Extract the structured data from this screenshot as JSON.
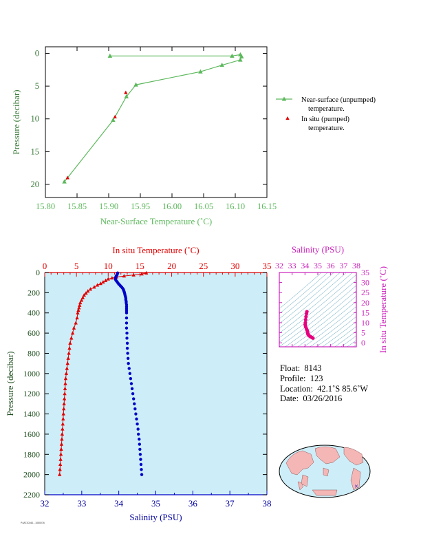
{
  "chart_data": [
    {
      "id": "near_surface",
      "type": "line",
      "xlabel": "Near-Surface Temperature (˚C)",
      "ylabel": "Pressure (decibar)",
      "xlim": [
        15.8,
        16.15
      ],
      "ylim": [
        22,
        -1
      ],
      "x_ticks": [
        15.8,
        15.85,
        15.9,
        15.95,
        16.0,
        16.05,
        16.1,
        16.15
      ],
      "x_tick_labels": [
        "15.80",
        "15.85",
        "15.90",
        "15.95",
        "16.00",
        "16.05",
        "16.10",
        "16.15"
      ],
      "y_ticks": [
        0,
        5,
        10,
        15,
        20
      ],
      "y_tick_labels": [
        "0",
        "5",
        "10",
        "15",
        "20"
      ],
      "legend_position": "right",
      "series": [
        {
          "name": "Near-surface (unpumped) temperature.",
          "color": "#5cb85c",
          "marker": "triangle",
          "points": [
            [
              15.902,
              0.4
            ],
            [
              16.095,
              0.4
            ],
            [
              16.108,
              0.2
            ],
            [
              16.11,
              0.5
            ],
            [
              16.108,
              1.0
            ],
            [
              16.079,
              1.8
            ],
            [
              16.045,
              2.8
            ],
            [
              15.943,
              4.8
            ],
            [
              15.928,
              6.6
            ],
            [
              15.907,
              10.2
            ],
            [
              15.83,
              19.6
            ]
          ]
        },
        {
          "name": "In situ (pumped) temperature.",
          "color": "#e00000",
          "marker": "triangle",
          "points": [
            [
              15.927,
              6.0
            ],
            [
              15.91,
              9.7
            ],
            [
              15.835,
              19.0
            ]
          ]
        }
      ]
    },
    {
      "id": "profile",
      "type": "line",
      "xlabel": "Salinity (PSU)",
      "x2label": "In situ Temperature (˚C)",
      "ylabel": "Pressure (decibar)",
      "salinity_lim": [
        32,
        38
      ],
      "temperature_lim": [
        0,
        35
      ],
      "ylim": [
        2200,
        0
      ],
      "salinity_ticks": [
        "32",
        "33",
        "34",
        "35",
        "36",
        "37",
        "38"
      ],
      "temperature_ticks": [
        "0",
        "5",
        "10",
        "15",
        "20",
        "25",
        "30",
        "35"
      ],
      "pressure_ticks": [
        "0",
        "200",
        "400",
        "600",
        "800",
        "1000",
        "1200",
        "1400",
        "1600",
        "1800",
        "2000",
        "2200"
      ],
      "series": [
        {
          "name": "In situ Temperature",
          "color": "#e00000",
          "marker": "triangle",
          "axis": "temperature",
          "points": [
            [
              16.0,
              5
            ],
            [
              15.3,
              15
            ],
            [
              14.0,
              25
            ],
            [
              12.5,
              35
            ],
            [
              11.3,
              45
            ],
            [
              10.6,
              55
            ],
            [
              10.0,
              65
            ],
            [
              9.6,
              80
            ],
            [
              9.2,
              95
            ],
            [
              8.8,
              110
            ],
            [
              8.3,
              125
            ],
            [
              7.8,
              145
            ],
            [
              7.2,
              165
            ],
            [
              6.8,
              185
            ],
            [
              6.5,
              205
            ],
            [
              6.2,
              225
            ],
            [
              6.0,
              250
            ],
            [
              5.8,
              275
            ],
            [
              5.6,
              300
            ],
            [
              5.5,
              325
            ],
            [
              5.4,
              350
            ],
            [
              5.3,
              375
            ],
            [
              5.2,
              400
            ],
            [
              5.1,
              450
            ],
            [
              4.9,
              500
            ],
            [
              4.6,
              550
            ],
            [
              4.4,
              600
            ],
            [
              4.2,
              650
            ],
            [
              4.0,
              700
            ],
            [
              3.9,
              750
            ],
            [
              3.8,
              800
            ],
            [
              3.7,
              850
            ],
            [
              3.6,
              900
            ],
            [
              3.5,
              950
            ],
            [
              3.4,
              1000
            ],
            [
              3.3,
              1050
            ],
            [
              3.25,
              1100
            ],
            [
              3.2,
              1150
            ],
            [
              3.15,
              1200
            ],
            [
              3.1,
              1250
            ],
            [
              3.05,
              1300
            ],
            [
              3.0,
              1350
            ],
            [
              2.95,
              1400
            ],
            [
              2.9,
              1450
            ],
            [
              2.85,
              1500
            ],
            [
              2.8,
              1550
            ],
            [
              2.75,
              1600
            ],
            [
              2.7,
              1650
            ],
            [
              2.65,
              1700
            ],
            [
              2.6,
              1750
            ],
            [
              2.55,
              1800
            ],
            [
              2.5,
              1850
            ],
            [
              2.45,
              1900
            ],
            [
              2.4,
              1950
            ],
            [
              2.35,
              2000
            ]
          ]
        },
        {
          "name": "Salinity",
          "color": "#0000e0",
          "marker": "circle",
          "axis": "salinity",
          "points": [
            [
              33.97,
              5
            ],
            [
              33.96,
              15
            ],
            [
              33.95,
              25
            ],
            [
              33.93,
              35
            ],
            [
              33.92,
              45
            ],
            [
              33.91,
              55
            ],
            [
              33.91,
              65
            ],
            [
              33.92,
              75
            ],
            [
              33.94,
              85
            ],
            [
              33.96,
              95
            ],
            [
              33.98,
              105
            ],
            [
              34.0,
              115
            ],
            [
              34.03,
              125
            ],
            [
              34.05,
              135
            ],
            [
              34.08,
              145
            ],
            [
              34.1,
              155
            ],
            [
              34.12,
              165
            ],
            [
              34.13,
              175
            ],
            [
              34.14,
              185
            ],
            [
              34.15,
              195
            ],
            [
              34.16,
              210
            ],
            [
              34.17,
              225
            ],
            [
              34.18,
              240
            ],
            [
              34.19,
              255
            ],
            [
              34.19,
              270
            ],
            [
              34.2,
              285
            ],
            [
              34.2,
              300
            ],
            [
              34.21,
              320
            ],
            [
              34.21,
              340
            ],
            [
              34.21,
              360
            ],
            [
              34.21,
              380
            ],
            [
              34.21,
              400
            ],
            [
              34.21,
              450
            ],
            [
              34.21,
              500
            ],
            [
              34.21,
              550
            ],
            [
              34.22,
              600
            ],
            [
              34.22,
              650
            ],
            [
              34.23,
              700
            ],
            [
              34.23,
              750
            ],
            [
              34.24,
              800
            ],
            [
              34.25,
              850
            ],
            [
              34.26,
              900
            ],
            [
              34.28,
              950
            ],
            [
              34.3,
              1000
            ],
            [
              34.32,
              1050
            ],
            [
              34.34,
              1100
            ],
            [
              34.36,
              1150
            ],
            [
              34.38,
              1200
            ],
            [
              34.4,
              1250
            ],
            [
              34.42,
              1300
            ],
            [
              34.44,
              1350
            ],
            [
              34.46,
              1400
            ],
            [
              34.48,
              1450
            ],
            [
              34.5,
              1500
            ],
            [
              34.52,
              1550
            ],
            [
              34.53,
              1600
            ],
            [
              34.55,
              1650
            ],
            [
              34.56,
              1700
            ],
            [
              34.57,
              1750
            ],
            [
              34.58,
              1800
            ],
            [
              34.59,
              1850
            ],
            [
              34.6,
              1900
            ],
            [
              34.61,
              1950
            ],
            [
              34.62,
              2000
            ]
          ]
        }
      ]
    },
    {
      "id": "ts_diagram",
      "type": "scatter",
      "xlabel": "Salinity (PSU)",
      "ylabel": "In situ Temperature (˚C)",
      "xlim": [
        32,
        38
      ],
      "ylim": [
        -2,
        35
      ],
      "x_ticks": [
        "32",
        "33",
        "34",
        "35",
        "36",
        "37",
        "38"
      ],
      "y_ticks": [
        "0",
        "5",
        "10",
        "15",
        "20",
        "25",
        "30",
        "35"
      ],
      "color": "#e6007e",
      "points": [
        [
          34.15,
          15.5
        ],
        [
          34.12,
          14.5
        ],
        [
          34.08,
          13.0
        ],
        [
          34.05,
          11.5
        ],
        [
          34.03,
          10.0
        ],
        [
          34.02,
          9.0
        ],
        [
          34.05,
          8.0
        ],
        [
          34.12,
          7.0
        ],
        [
          34.16,
          6.3
        ],
        [
          34.2,
          5.6
        ],
        [
          34.21,
          5.0
        ],
        [
          34.22,
          4.5
        ],
        [
          34.26,
          4.0
        ],
        [
          34.32,
          3.5
        ],
        [
          34.4,
          3.2
        ],
        [
          34.48,
          2.9
        ],
        [
          34.55,
          2.6
        ],
        [
          34.62,
          2.35
        ]
      ]
    }
  ],
  "info": {
    "float_label": "Float:",
    "float_value": "8143",
    "profile_label": "Profile:",
    "profile_value": "123",
    "location_label": "Location:",
    "location_value": "42.1˚S  85.6˚W",
    "date_label": "Date:",
    "date_value": "03/26/2016"
  },
  "footer": "P4AT20160...1050076"
}
